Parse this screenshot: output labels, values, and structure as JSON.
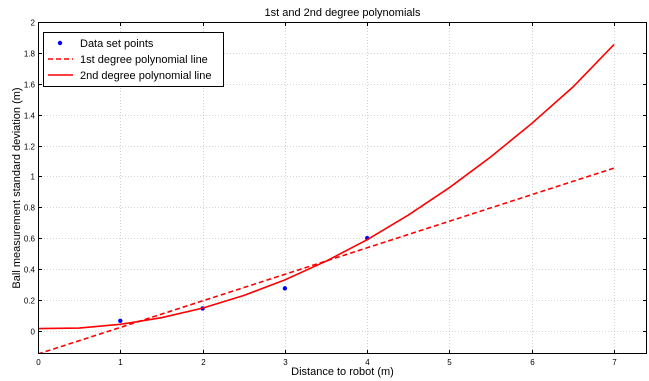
{
  "chart_data": {
    "type": "line",
    "title": "1st and 2nd degree polynomials",
    "xlabel": "Distance to robot (m)",
    "ylabel": "Ball measurement standard deviation (m)",
    "xlim": [
      0,
      7.4
    ],
    "ylim": [
      -0.15,
      2
    ],
    "grid": true,
    "legend_position": "top-left",
    "x_ticks": [
      0,
      1,
      2,
      3,
      4,
      5,
      6,
      7
    ],
    "x_tick_labels": [
      "0",
      "1",
      "2",
      "3",
      "4",
      "5",
      "6",
      "7"
    ],
    "y_ticks": [
      0,
      0.2,
      0.4,
      0.6,
      0.8,
      1,
      1.2,
      1.4,
      1.6,
      1.8,
      2
    ],
    "y_tick_labels": [
      "0",
      "0.2",
      "0.4",
      "0.6",
      "0.8",
      "1",
      "1.2",
      "1.4",
      "1.6",
      "1.8",
      "2"
    ],
    "series": [
      {
        "name": "Data set points",
        "kind": "scatter",
        "color": "#0000ff",
        "x": [
          1,
          2,
          3,
          4
        ],
        "y": [
          0.065,
          0.145,
          0.275,
          0.6
        ]
      },
      {
        "name": "1st degree polynomial line",
        "kind": "line",
        "style": "dashed",
        "color": "#ff0000",
        "x": [
          0,
          1,
          2,
          3,
          4,
          5,
          6,
          7
        ],
        "y": [
          -0.15,
          0.022,
          0.194,
          0.366,
          0.538,
          0.71,
          0.882,
          1.054
        ]
      },
      {
        "name": "2nd degree polynomial line",
        "kind": "line",
        "style": "solid",
        "color": "#ff0000",
        "x": [
          0,
          0.5,
          1,
          1.5,
          2,
          2.5,
          3,
          3.5,
          4,
          4.5,
          5,
          5.5,
          6,
          6.5,
          7
        ],
        "y": [
          0.015,
          0.018,
          0.042,
          0.085,
          0.147,
          0.229,
          0.33,
          0.451,
          0.59,
          0.75,
          0.928,
          1.126,
          1.343,
          1.579,
          1.855
        ]
      }
    ]
  }
}
